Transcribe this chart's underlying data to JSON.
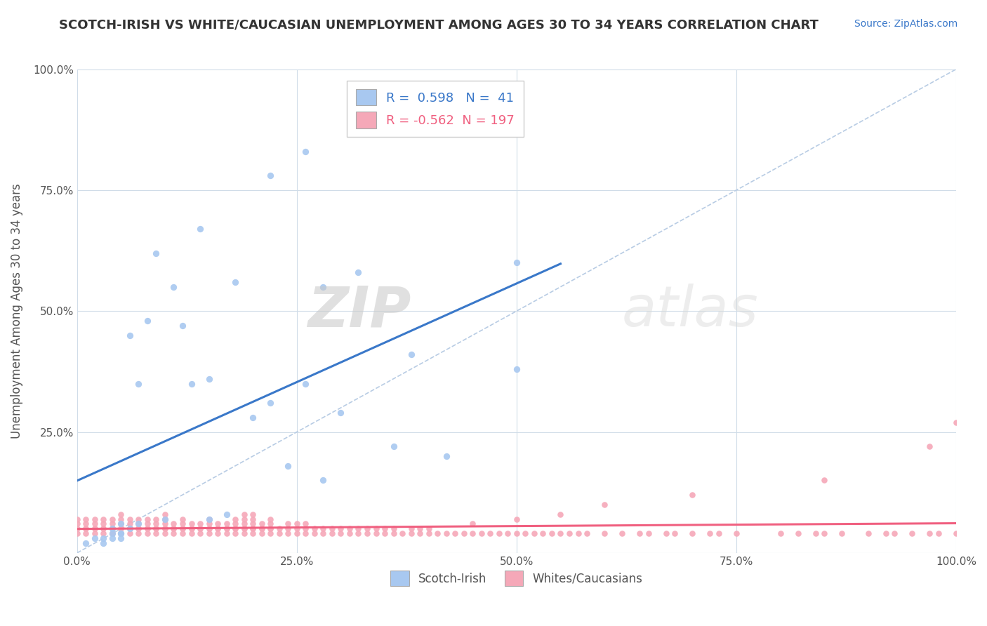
{
  "title": "SCOTCH-IRISH VS WHITE/CAUCASIAN UNEMPLOYMENT AMONG AGES 30 TO 34 YEARS CORRELATION CHART",
  "source": "Source: ZipAtlas.com",
  "ylabel": "Unemployment Among Ages 30 to 34 years",
  "r_scotch_irish": 0.598,
  "n_scotch_irish": 41,
  "r_white": -0.562,
  "n_white": 197,
  "scotch_irish_color": "#a8c8f0",
  "white_color": "#f5a8b8",
  "scotch_irish_line_color": "#3a78c9",
  "white_line_color": "#f06080",
  "legend_scotch_label": "Scotch-Irish",
  "legend_white_label": "Whites/Caucasians",
  "watermark_zip": "ZIP",
  "watermark_atlas": "atlas",
  "background_color": "#ffffff",
  "grid_color": "#d0dce8",
  "title_color": "#333333",
  "axis_label_color": "#555555",
  "source_color": "#3a78c9",
  "xlim": [
    0,
    1
  ],
  "ylim": [
    0,
    1
  ],
  "x_ticks": [
    0,
    0.25,
    0.5,
    0.75,
    1.0
  ],
  "x_tick_labels": [
    "0.0%",
    "25.0%",
    "50.0%",
    "75.0%",
    "100.0%"
  ],
  "y_ticks": [
    0,
    0.25,
    0.5,
    0.75,
    1.0
  ],
  "y_tick_labels": [
    "",
    "25.0%",
    "50.0%",
    "75.0%",
    "100.0%"
  ],
  "scotch_irish_x": [
    0.01,
    0.02,
    0.03,
    0.03,
    0.04,
    0.04,
    0.04,
    0.05,
    0.05,
    0.05,
    0.05,
    0.06,
    0.06,
    0.07,
    0.07,
    0.08,
    0.09,
    0.1,
    0.11,
    0.12,
    0.13,
    0.14,
    0.15,
    0.17,
    0.18,
    0.2,
    0.22,
    0.22,
    0.24,
    0.26,
    0.26,
    0.28,
    0.3,
    0.32,
    0.36,
    0.38,
    0.5,
    0.5,
    0.15,
    0.42,
    0.28
  ],
  "scotch_irish_y": [
    0.02,
    0.03,
    0.02,
    0.03,
    0.04,
    0.05,
    0.03,
    0.04,
    0.04,
    0.06,
    0.03,
    0.05,
    0.45,
    0.06,
    0.35,
    0.48,
    0.62,
    0.07,
    0.55,
    0.47,
    0.35,
    0.67,
    0.36,
    0.08,
    0.56,
    0.28,
    0.31,
    0.78,
    0.18,
    0.83,
    0.35,
    0.55,
    0.29,
    0.58,
    0.22,
    0.41,
    0.6,
    0.38,
    0.07,
    0.2,
    0.15
  ],
  "white_x": [
    0.01,
    0.01,
    0.01,
    0.02,
    0.02,
    0.02,
    0.03,
    0.03,
    0.03,
    0.04,
    0.04,
    0.04,
    0.05,
    0.05,
    0.05,
    0.05,
    0.06,
    0.06,
    0.06,
    0.07,
    0.07,
    0.07,
    0.08,
    0.08,
    0.08,
    0.09,
    0.09,
    0.09,
    0.1,
    0.1,
    0.1,
    0.1,
    0.11,
    0.11,
    0.12,
    0.12,
    0.12,
    0.13,
    0.13,
    0.14,
    0.14,
    0.15,
    0.15,
    0.15,
    0.16,
    0.16,
    0.17,
    0.17,
    0.18,
    0.18,
    0.18,
    0.19,
    0.19,
    0.19,
    0.19,
    0.2,
    0.2,
    0.2,
    0.2,
    0.21,
    0.21,
    0.22,
    0.22,
    0.22,
    0.23,
    0.24,
    0.24,
    0.25,
    0.25,
    0.26,
    0.26,
    0.27,
    0.28,
    0.29,
    0.3,
    0.31,
    0.32,
    0.33,
    0.34,
    0.35,
    0.36,
    0.38,
    0.39,
    0.4,
    0.45,
    0.5,
    0.55,
    0.6,
    0.7,
    0.85,
    0.0,
    0.0,
    0.0,
    0.0,
    0.01,
    0.01,
    0.02,
    0.02,
    0.03,
    0.03,
    0.04,
    0.04,
    0.05,
    0.05,
    0.06,
    0.06,
    0.07,
    0.07,
    0.08,
    0.08,
    0.09,
    0.09,
    0.1,
    0.1,
    0.11,
    0.11,
    0.12,
    0.12,
    0.13,
    0.13,
    0.14,
    0.14,
    0.15,
    0.15,
    0.16,
    0.16,
    0.17,
    0.17,
    0.18,
    0.18,
    0.19,
    0.19,
    0.2,
    0.2,
    0.21,
    0.21,
    0.22,
    0.22,
    0.23,
    0.24,
    0.25,
    0.26,
    0.27,
    0.28,
    0.29,
    0.3,
    0.31,
    0.32,
    0.33,
    0.34,
    0.35,
    0.36,
    0.37,
    0.38,
    0.39,
    0.4,
    0.41,
    0.42,
    0.43,
    0.44,
    0.45,
    0.46,
    0.47,
    0.48,
    0.49,
    0.5,
    0.51,
    0.52,
    0.53,
    0.54,
    0.55,
    0.56,
    0.57,
    0.58,
    0.6,
    0.62,
    0.64,
    0.65,
    0.67,
    0.68,
    0.7,
    0.72,
    0.73,
    0.75,
    0.8,
    0.82,
    0.84,
    0.85,
    0.87,
    0.9,
    0.92,
    0.93,
    0.95,
    0.97,
    0.98,
    1.0,
    0.97,
    1.0
  ],
  "white_y": [
    0.05,
    0.06,
    0.07,
    0.05,
    0.06,
    0.07,
    0.05,
    0.06,
    0.07,
    0.05,
    0.06,
    0.07,
    0.05,
    0.06,
    0.07,
    0.08,
    0.05,
    0.06,
    0.07,
    0.05,
    0.06,
    0.07,
    0.05,
    0.06,
    0.07,
    0.05,
    0.06,
    0.07,
    0.05,
    0.06,
    0.07,
    0.08,
    0.05,
    0.06,
    0.05,
    0.06,
    0.07,
    0.05,
    0.06,
    0.05,
    0.06,
    0.05,
    0.06,
    0.07,
    0.05,
    0.06,
    0.05,
    0.06,
    0.05,
    0.06,
    0.07,
    0.05,
    0.06,
    0.07,
    0.08,
    0.05,
    0.06,
    0.07,
    0.08,
    0.05,
    0.06,
    0.05,
    0.06,
    0.07,
    0.05,
    0.05,
    0.06,
    0.05,
    0.06,
    0.05,
    0.06,
    0.05,
    0.05,
    0.05,
    0.05,
    0.05,
    0.05,
    0.05,
    0.05,
    0.05,
    0.05,
    0.05,
    0.05,
    0.05,
    0.06,
    0.07,
    0.08,
    0.1,
    0.12,
    0.15,
    0.04,
    0.05,
    0.06,
    0.07,
    0.04,
    0.05,
    0.04,
    0.05,
    0.04,
    0.05,
    0.04,
    0.05,
    0.04,
    0.05,
    0.04,
    0.05,
    0.04,
    0.05,
    0.04,
    0.05,
    0.04,
    0.05,
    0.04,
    0.05,
    0.04,
    0.05,
    0.04,
    0.05,
    0.04,
    0.05,
    0.04,
    0.05,
    0.04,
    0.05,
    0.04,
    0.05,
    0.04,
    0.05,
    0.04,
    0.05,
    0.04,
    0.05,
    0.04,
    0.05,
    0.04,
    0.05,
    0.04,
    0.05,
    0.04,
    0.04,
    0.04,
    0.04,
    0.04,
    0.04,
    0.04,
    0.04,
    0.04,
    0.04,
    0.04,
    0.04,
    0.04,
    0.04,
    0.04,
    0.04,
    0.04,
    0.04,
    0.04,
    0.04,
    0.04,
    0.04,
    0.04,
    0.04,
    0.04,
    0.04,
    0.04,
    0.04,
    0.04,
    0.04,
    0.04,
    0.04,
    0.04,
    0.04,
    0.04,
    0.04,
    0.04,
    0.04,
    0.04,
    0.04,
    0.04,
    0.04,
    0.04,
    0.04,
    0.04,
    0.04,
    0.04,
    0.04,
    0.04,
    0.04,
    0.04,
    0.04,
    0.04,
    0.04,
    0.04,
    0.04,
    0.04,
    0.04,
    0.22,
    0.27
  ]
}
